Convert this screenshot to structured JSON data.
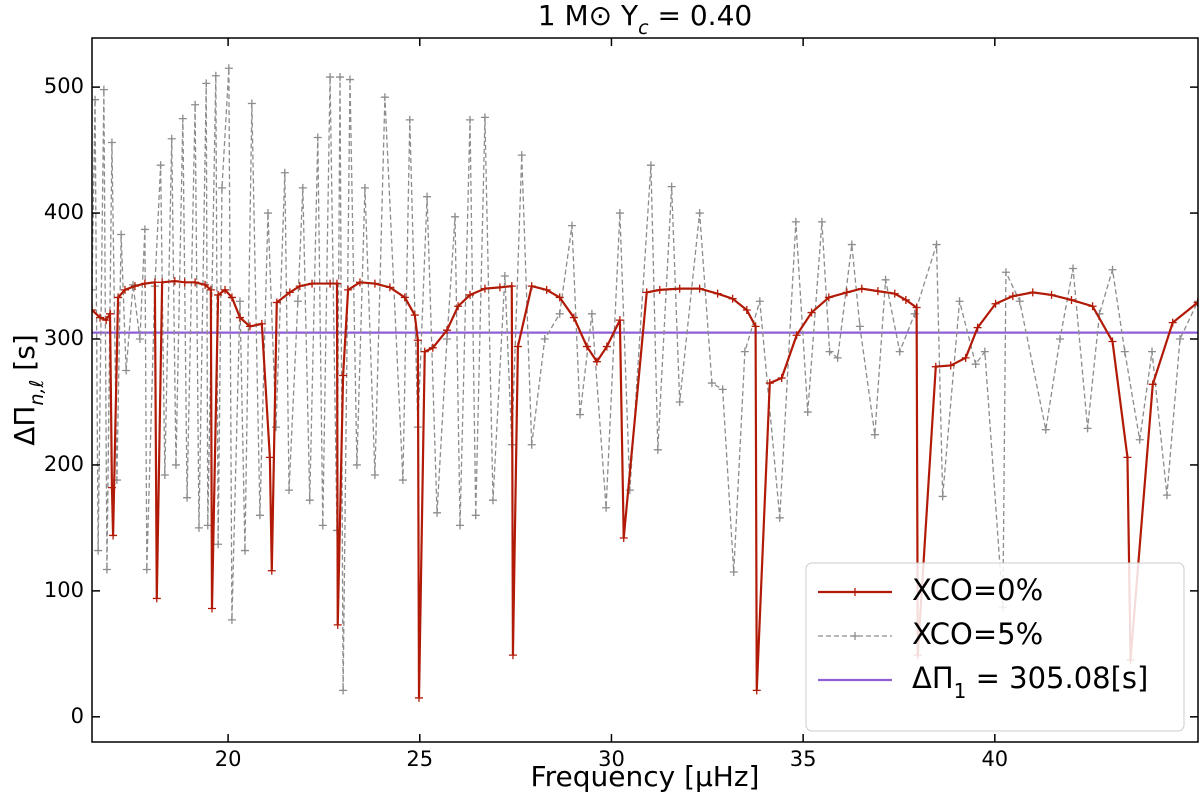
{
  "chart_data": {
    "type": "line",
    "title_parts": [
      "1 M⊙  Y",
      "c",
      " = 0.40"
    ],
    "x_label": "Frequency [μHz]",
    "y_label_parts": [
      "ΔΠ",
      "n,ℓ",
      " [s]"
    ],
    "xlim": [
      16.45,
      45.3
    ],
    "ylim": [
      -20,
      539
    ],
    "xticks": [
      20,
      25,
      30,
      35,
      40
    ],
    "yticks": [
      0,
      100,
      200,
      300,
      400,
      500
    ],
    "legend": "lower right",
    "series": [
      {
        "name": "XCO=0%",
        "color": "#b11a06",
        "style": "solid",
        "x": [
          16.45,
          16.66,
          16.82,
          16.92,
          16.97,
          17.0,
          17.13,
          17.31,
          17.57,
          17.83,
          18.09,
          18.14,
          18.28,
          18.61,
          18.87,
          19.14,
          19.4,
          19.55,
          19.58,
          19.74,
          19.92,
          20.1,
          20.31,
          20.57,
          20.88,
          21.09,
          21.14,
          21.27,
          21.61,
          21.87,
          22.19,
          22.66,
          22.84,
          22.86,
          23.0,
          23.13,
          23.44,
          23.83,
          24.22,
          24.61,
          24.87,
          24.95,
          24.98,
          25.13,
          25.34,
          25.71,
          26.0,
          26.31,
          26.7,
          27.09,
          27.4,
          27.43,
          27.56,
          27.92,
          28.31,
          28.65,
          29.02,
          29.36,
          29.62,
          29.88,
          30.22,
          30.32,
          30.92,
          31.26,
          31.78,
          32.3,
          32.77,
          33.16,
          33.53,
          33.76,
          33.79,
          34.13,
          34.44,
          34.83,
          35.22,
          35.67,
          36.14,
          36.53,
          36.95,
          37.39,
          37.68,
          37.96,
          37.99,
          38.46,
          38.85,
          39.24,
          39.55,
          40.02,
          40.47,
          40.99,
          41.48,
          42.0,
          42.55,
          43.07,
          43.46,
          43.54,
          44.12,
          44.64,
          45.29
        ],
        "values": [
          323,
          317,
          315,
          320,
          182,
          144,
          333,
          339,
          342,
          344,
          345,
          94,
          345,
          346,
          345,
          345,
          343,
          339,
          86,
          335,
          339,
          333,
          317,
          310,
          312,
          206,
          116,
          329,
          337,
          342,
          344,
          344,
          344,
          73,
          271,
          339,
          345,
          344,
          341,
          333,
          319,
          299,
          15,
          290,
          293,
          307,
          326,
          335,
          340,
          341,
          342,
          49,
          294,
          342,
          339,
          333,
          317,
          294,
          282,
          294,
          315,
          142,
          337,
          339,
          340,
          340,
          336,
          332,
          323,
          310,
          21,
          265,
          269,
          303,
          321,
          333,
          337,
          340,
          338,
          336,
          331,
          325,
          49,
          278,
          279,
          285,
          309,
          328,
          334,
          337,
          335,
          331,
          326,
          298,
          206,
          45,
          264,
          313,
          329
        ]
      },
      {
        "name": "XCO=5%",
        "color": "#8c8c8c",
        "style": "dashed",
        "x": [
          16.45,
          16.53,
          16.61,
          16.76,
          16.84,
          16.97,
          17.1,
          17.21,
          17.34,
          17.52,
          17.7,
          17.83,
          17.88,
          18.09,
          18.24,
          18.35,
          18.53,
          18.64,
          18.82,
          18.93,
          19.14,
          19.24,
          19.43,
          19.47,
          19.68,
          19.74,
          19.84,
          20.02,
          20.1,
          20.31,
          20.44,
          20.62,
          20.83,
          21.04,
          21.25,
          21.48,
          21.59,
          21.82,
          21.95,
          22.13,
          22.34,
          22.47,
          22.66,
          22.84,
          22.92,
          23.0,
          23.18,
          23.36,
          23.57,
          23.83,
          24.09,
          24.56,
          24.74,
          24.95,
          25.19,
          25.45,
          25.71,
          25.92,
          26.05,
          26.31,
          26.46,
          26.7,
          26.91,
          27.22,
          27.4,
          27.66,
          27.92,
          28.26,
          28.65,
          28.97,
          29.18,
          29.49,
          29.86,
          30.22,
          30.48,
          31.03,
          31.21,
          31.57,
          31.78,
          32.3,
          32.62,
          32.9,
          33.19,
          33.48,
          33.87,
          34.39,
          34.81,
          35.12,
          35.49,
          35.69,
          35.9,
          36.27,
          36.48,
          36.87,
          37.15,
          37.52,
          37.91,
          38.48,
          38.64,
          39.08,
          39.5,
          39.74,
          40.21,
          40.29,
          40.65,
          41.33,
          41.7,
          42.04,
          42.42,
          42.73,
          43.07,
          43.39,
          43.78,
          44.1,
          44.49,
          44.83,
          45.3
        ],
        "values": [
          339,
          490,
          132,
          498,
          117,
          456,
          188,
          383,
          275,
          343,
          300,
          387,
          117,
          342,
          438,
          192,
          459,
          200,
          475,
          174,
          486,
          150,
          503,
          152,
          509,
          137,
          420,
          515,
          77,
          330,
          132,
          487,
          160,
          400,
          230,
          432,
          180,
          330,
          420,
          172,
          460,
          152,
          508,
          148,
          508,
          21,
          506,
          200,
          420,
          192,
          492,
          188,
          474,
          230,
          413,
          162,
          300,
          397,
          152,
          474,
          160,
          476,
          172,
          350,
          216,
          446,
          216,
          300,
          320,
          390,
          240,
          320,
          166,
          400,
          180,
          438,
          212,
          421,
          250,
          400,
          265,
          260,
          115,
          290,
          330,
          158,
          393,
          242,
          393,
          290,
          285,
          375,
          310,
          224,
          347,
          290,
          320,
          375,
          175,
          330,
          280,
          290,
          87,
          353,
          330,
          228,
          300,
          356,
          229,
          320,
          355,
          290,
          220,
          290,
          176,
          300,
          330
        ]
      }
    ],
    "hline": {
      "value": 305.08,
      "color": "#8e5fd6",
      "label_parts": [
        "ΔΠ",
        "1",
        " = 305.08[s]"
      ]
    }
  }
}
